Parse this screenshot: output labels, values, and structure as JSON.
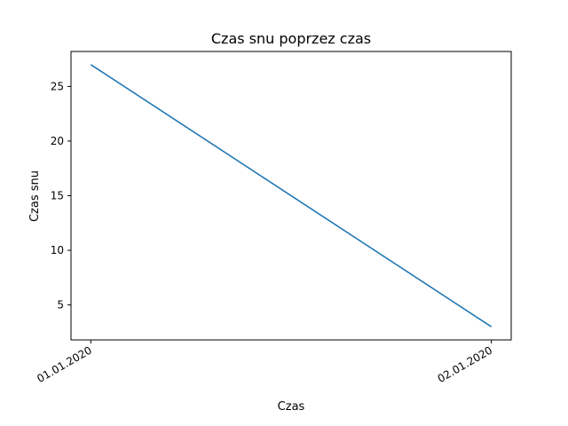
{
  "chart_data": {
    "type": "line",
    "title": "Czas snu poprzez czas",
    "xlabel": "Czas",
    "ylabel": "Czas snu",
    "x": [
      "01.01.2020",
      "02.01.2020"
    ],
    "series": [
      {
        "values": [
          27,
          3
        ]
      }
    ],
    "ylim": [
      1.8,
      28.2
    ],
    "yticks": [
      5,
      10,
      15,
      20,
      25
    ],
    "xtick_labels": [
      "01.01.2020",
      "02.01.2020"
    ],
    "grid": false,
    "line_color": "#1f77b4"
  }
}
